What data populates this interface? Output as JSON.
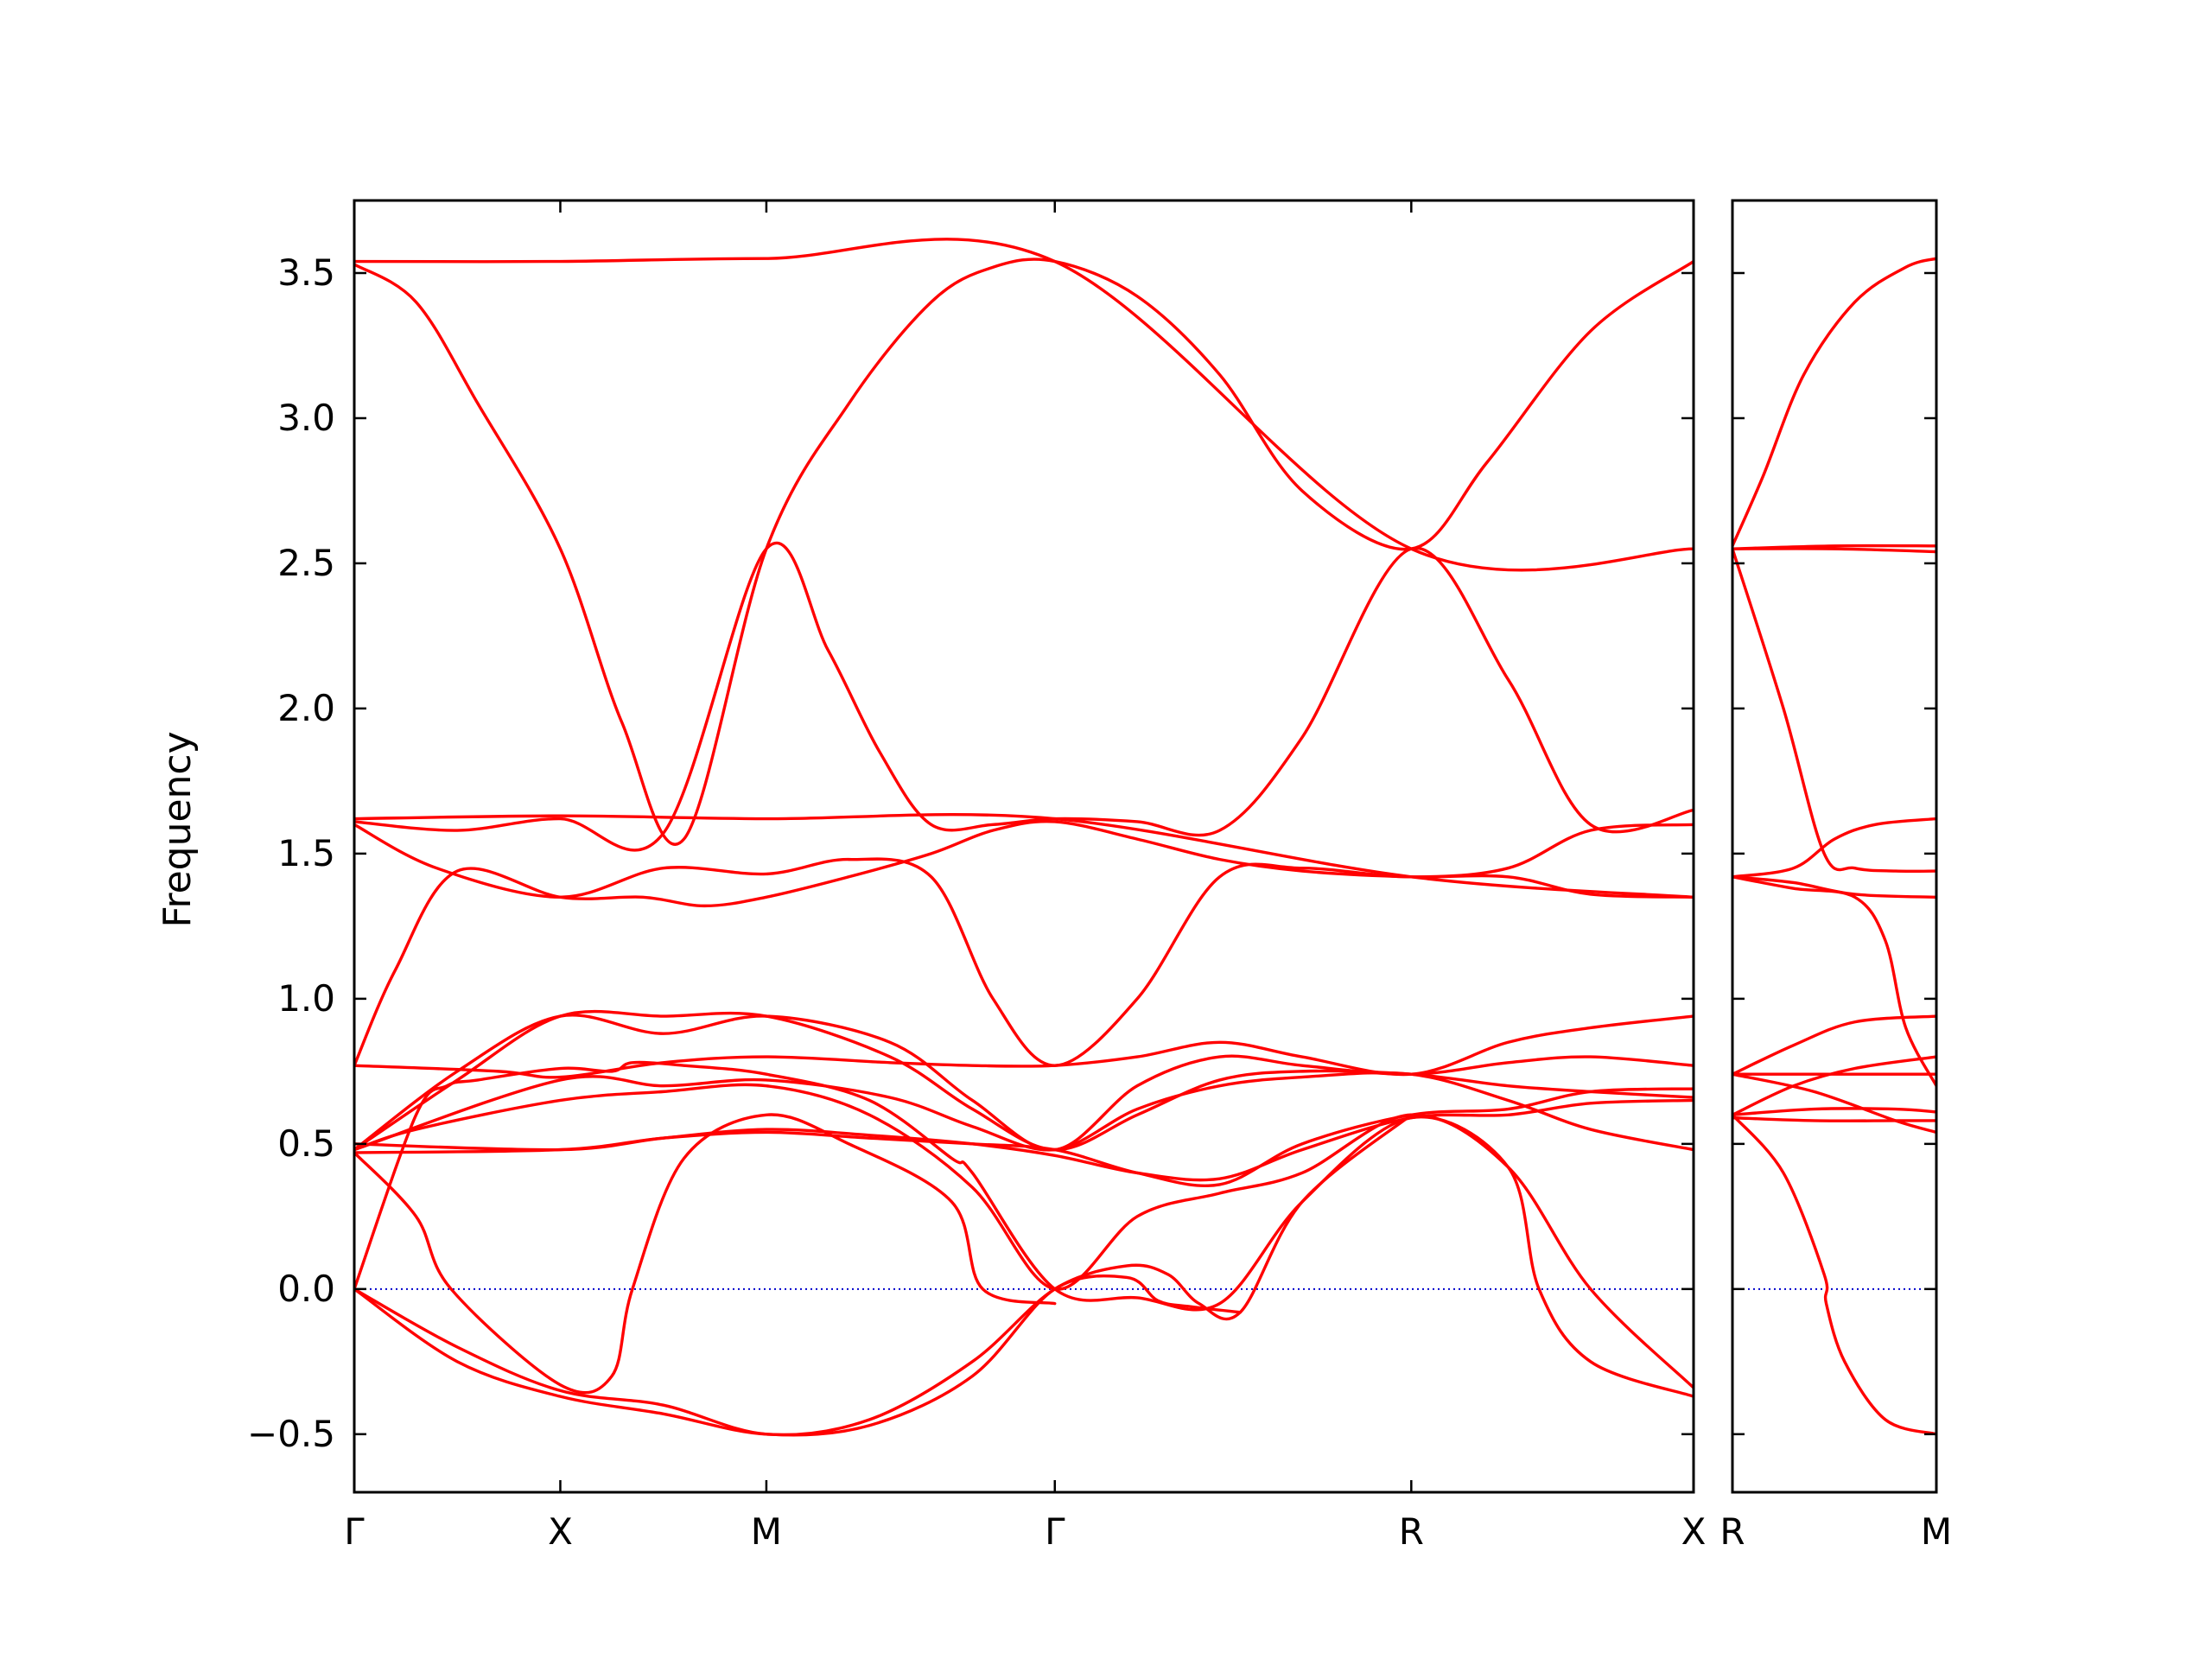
{
  "colors": {
    "band": "#ff0000",
    "zero_line": "#0000cc",
    "axes": "#000000",
    "background": "#ffffff"
  },
  "chart_data": {
    "type": "line",
    "title": "",
    "xlabel": "",
    "ylabel": "Frequency",
    "ylim": [
      -0.7,
      3.75
    ],
    "yticks": [
      -0.5,
      0.0,
      0.5,
      1.0,
      1.5,
      2.0,
      2.5,
      3.0,
      3.5
    ],
    "ytick_labels": [
      "−0.5",
      "0.0",
      "0.5",
      "1.0",
      "1.5",
      "2.0",
      "2.5",
      "3.0",
      "3.5"
    ],
    "grid": false,
    "legend": "none",
    "zero_line": {
      "y": 0.0,
      "style": "dotted"
    },
    "panels": [
      {
        "id": "main",
        "path_length": 6.5,
        "high_symmetry_points": [
          {
            "label": "Γ",
            "x": 0.0
          },
          {
            "label": "X",
            "x": 1.0
          },
          {
            "label": "M",
            "x": 2.0
          },
          {
            "label": "Γ",
            "x": 3.4
          },
          {
            "label": "R",
            "x": 5.13
          },
          {
            "label": "X",
            "x": 6.5
          }
        ],
        "bands": [
          {
            "x": [
              0,
              1,
              2,
              3.4,
              5.13,
              6.5
            ],
            "y": [
              3.54,
              3.54,
              3.55,
              3.54,
              2.55,
              2.55
            ]
          },
          {
            "x": [
              0,
              0.3,
              0.6,
              1,
              1.3,
              1.6,
              2,
              2.4,
              2.8,
              3.1,
              3.4,
              3.8,
              4.2,
              4.6,
              5.13,
              5.5,
              6,
              6.5
            ],
            "y": [
              3.53,
              3.4,
              3.05,
              2.55,
              1.95,
              1.55,
              2.55,
              3.05,
              3.4,
              3.52,
              3.54,
              3.42,
              3.15,
              2.75,
              2.55,
              2.85,
              3.3,
              3.54
            ]
          },
          {
            "x": [
              0,
              1,
              2,
              3.4,
              5.13,
              6.5
            ],
            "y": [
              1.62,
              1.63,
              1.62,
              1.62,
              1.42,
              1.35
            ]
          },
          {
            "x": [
              0,
              0.5,
              1,
              1.5,
              2,
              2.3,
              2.55,
              2.8,
              3.1,
              3.4,
              3.8,
              4.2,
              4.6,
              5.13,
              5.6,
              6,
              6.5
            ],
            "y": [
              1.61,
              1.58,
              1.62,
              1.57,
              2.55,
              2.2,
              1.85,
              1.6,
              1.6,
              1.62,
              1.61,
              1.58,
              1.9,
              2.55,
              2.1,
              1.6,
              1.65
            ]
          },
          {
            "x": [
              0,
              0.4,
              1,
              1.5,
              2,
              2.4,
              2.8,
              3.1,
              3.4,
              3.8,
              4.2,
              4.6,
              5.13,
              5.6,
              6,
              6.5
            ],
            "y": [
              1.6,
              1.45,
              1.35,
              1.45,
              1.43,
              1.48,
              1.42,
              1.0,
              0.77,
              1.0,
              1.42,
              1.45,
              1.42,
              1.45,
              1.58,
              1.6
            ]
          },
          {
            "x": [
              0,
              0.2,
              0.5,
              1,
              1.4,
              1.7,
              2,
              2.4,
              2.8,
              3.1,
              3.4,
              3.8,
              4.2,
              4.6,
              5.13,
              5.6,
              6,
              6.5
            ],
            "y": [
              0.77,
              1.1,
              1.44,
              1.35,
              1.35,
              1.32,
              1.35,
              1.42,
              1.5,
              1.58,
              1.61,
              1.55,
              1.48,
              1.44,
              1.42,
              1.42,
              1.36,
              1.35
            ]
          },
          {
            "x": [
              0,
              0.7,
              1,
              1.5,
              2,
              2.6,
              3.0,
              3.4,
              3.8,
              4.2,
              4.6,
              5.13,
              5.6,
              6,
              6.5
            ],
            "y": [
              0.77,
              0.75,
              0.73,
              0.78,
              0.8,
              0.78,
              0.77,
              0.77,
              0.8,
              0.85,
              0.8,
              0.74,
              0.85,
              0.9,
              0.94
            ]
          },
          {
            "x": [
              0,
              0.5,
              1,
              1.5,
              2,
              2.6,
              3.0,
              3.4,
              3.8,
              4.2,
              4.6,
              5.13,
              5.6,
              6,
              6.5
            ],
            "y": [
              0.48,
              0.75,
              0.94,
              0.88,
              0.94,
              0.85,
              0.65,
              0.48,
              0.7,
              0.8,
              0.77,
              0.74,
              0.78,
              0.8,
              0.77
            ]
          },
          {
            "x": [
              0,
              0.5,
              1,
              1.5,
              2,
              2.6,
              3.0,
              3.4,
              3.8,
              4.2,
              4.6,
              5.13,
              5.6,
              6,
              6.5
            ],
            "y": [
              0.48,
              0.72,
              0.94,
              0.94,
              0.94,
              0.8,
              0.62,
              0.48,
              0.6,
              0.72,
              0.75,
              0.74,
              0.7,
              0.68,
              0.66
            ]
          },
          {
            "x": [
              0,
              1,
              1.5,
              2,
              2.6,
              3.0,
              3.4,
              3.8,
              4.2,
              4.6,
              5.13,
              5.6,
              6,
              6.5
            ],
            "y": [
              0.48,
              0.72,
              0.7,
              0.72,
              0.66,
              0.56,
              0.48,
              0.62,
              0.7,
              0.73,
              0.74,
              0.65,
              0.55,
              0.48
            ]
          },
          {
            "x": [
              0,
              1,
              1.5,
              2,
              2.5,
              3.0,
              3.4,
              3.8,
              4.2,
              4.6,
              5.13,
              5.6,
              6,
              6.5
            ],
            "y": [
              0.47,
              0.48,
              0.52,
              0.54,
              0.52,
              0.5,
              0.48,
              0.4,
              0.36,
              0.5,
              0.6,
              0.62,
              0.68,
              0.69
            ]
          },
          {
            "x": [
              0,
              1,
              1.5,
              2,
              2.5,
              3.0,
              3.4,
              3.8,
              4.2,
              4.6,
              5.13,
              5.6,
              6,
              6.5
            ],
            "y": [
              0.5,
              0.48,
              0.52,
              0.55,
              0.53,
              0.5,
              0.46,
              0.4,
              0.38,
              0.48,
              0.59,
              0.6,
              0.64,
              0.65
            ]
          },
          {
            "x": [
              0,
              0.3,
              1,
              1.5,
              2,
              2.5,
              3.0,
              3.4,
              3.8,
              4.2,
              4.6,
              5.13,
              5.6,
              6,
              6.5
            ],
            "y": [
              0.48,
              0.55,
              0.65,
              0.68,
              0.7,
              0.6,
              0.35,
              0.0,
              0.25,
              0.33,
              0.4,
              0.6,
              0.42,
              0.0,
              -0.34
            ]
          },
          {
            "x": [
              0,
              0.3,
              0.45,
              0.6,
              1,
              1.25,
              1.35,
              1.6,
              2,
              2.5,
              2.9,
              3.0,
              3.4,
              3.8,
              4.2,
              4.6,
              5.13,
              5.6,
              5.75,
              6,
              6.5
            ],
            "y": [
              0.0,
              0.6,
              0.7,
              0.72,
              0.76,
              0.75,
              0.78,
              0.77,
              0.74,
              0.65,
              0.45,
              0.4,
              0.0,
              -0.03,
              -0.05,
              0.3,
              0.59,
              0.42,
              0.0,
              -0.25,
              -0.37
            ]
          },
          {
            "x": [
              0,
              0.3,
              0.47,
              1,
              1.25,
              1.35,
              1.6,
              2,
              2.4,
              2.9,
              3.05,
              3.4
            ],
            "y": [
              0.47,
              0.25,
              0.0,
              -0.33,
              -0.3,
              0.0,
              0.45,
              0.6,
              0.5,
              0.3,
              0.0,
              -0.05
            ]
          },
          {
            "x": [
              0,
              0.5,
              1,
              1.5,
              2,
              2.5,
              3.0,
              3.4,
              3.75,
              3.95,
              4.1,
              4.3,
              4.6,
              5.13
            ],
            "y": [
              0.0,
              -0.2,
              -0.35,
              -0.4,
              -0.5,
              -0.45,
              -0.25,
              0.0,
              0.08,
              0.05,
              -0.05,
              -0.08,
              0.3,
              0.6
            ]
          },
          {
            "x": [
              0,
              0.5,
              1,
              1.5,
              2,
              2.5,
              3.0,
              3.4,
              3.75,
              3.9,
              4.05,
              4.3
            ],
            "y": [
              0.0,
              -0.25,
              -0.37,
              -0.43,
              -0.5,
              -0.47,
              -0.3,
              0.0,
              0.04,
              -0.04,
              -0.06,
              -0.08
            ]
          }
        ]
      },
      {
        "id": "right",
        "path_length": 1.0,
        "high_symmetry_points": [
          {
            "label": "R",
            "x": 0.0
          },
          {
            "label": "M",
            "x": 1.0
          }
        ],
        "bands": [
          {
            "x": [
              0,
              0.15,
              0.35,
              0.6,
              0.85,
              1.0
            ],
            "y": [
              2.56,
              2.8,
              3.15,
              3.4,
              3.52,
              3.55
            ]
          },
          {
            "x": [
              0,
              0.5,
              1.0
            ],
            "y": [
              2.55,
              2.56,
              2.56
            ]
          },
          {
            "x": [
              0,
              0.5,
              1.0
            ],
            "y": [
              2.55,
              2.55,
              2.54
            ]
          },
          {
            "x": [
              0,
              0.25,
              0.45,
              0.6,
              0.8,
              1.0
            ],
            "y": [
              2.55,
              2.0,
              1.5,
              1.45,
              1.44,
              1.44
            ]
          },
          {
            "x": [
              0,
              0.3,
              0.5,
              0.7,
              1.0
            ],
            "y": [
              1.42,
              1.45,
              1.55,
              1.6,
              1.62
            ]
          },
          {
            "x": [
              0,
              0.3,
              0.6,
              1.0
            ],
            "y": [
              1.42,
              1.4,
              1.36,
              1.35
            ]
          },
          {
            "x": [
              0,
              0.3,
              0.6,
              0.75,
              0.85,
              1.0
            ],
            "y": [
              1.42,
              1.38,
              1.35,
              1.2,
              0.9,
              0.7
            ]
          },
          {
            "x": [
              0,
              0.3,
              0.6,
              1.0
            ],
            "y": [
              0.74,
              0.84,
              0.92,
              0.94
            ]
          },
          {
            "x": [
              0,
              0.5,
              1.0
            ],
            "y": [
              0.74,
              0.74,
              0.74
            ]
          },
          {
            "x": [
              0,
              0.3,
              0.6,
              1.0
            ],
            "y": [
              0.6,
              0.7,
              0.76,
              0.8
            ]
          },
          {
            "x": [
              0,
              0.4,
              0.8,
              1.0
            ],
            "y": [
              0.6,
              0.62,
              0.62,
              0.61
            ]
          },
          {
            "x": [
              0,
              0.4,
              0.8,
              1.0
            ],
            "y": [
              0.59,
              0.58,
              0.58,
              0.58
            ]
          },
          {
            "x": [
              0,
              0.4,
              0.8,
              1.0
            ],
            "y": [
              0.74,
              0.68,
              0.58,
              0.54
            ]
          },
          {
            "x": [
              0,
              0.25,
              0.45,
              0.46,
              0.55,
              0.75,
              1.0
            ],
            "y": [
              0.6,
              0.4,
              0.05,
              -0.05,
              -0.25,
              -0.45,
              -0.5
            ]
          }
        ]
      }
    ]
  }
}
